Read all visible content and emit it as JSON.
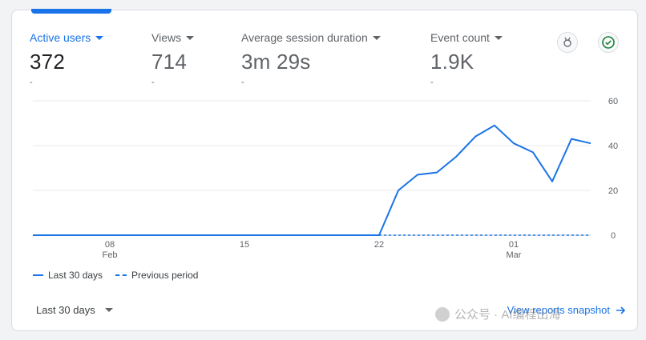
{
  "metrics": [
    {
      "label": "Active users",
      "value": "372",
      "delta": "-"
    },
    {
      "label": "Views",
      "value": "714",
      "delta": "-"
    },
    {
      "label": "Average session duration",
      "value": "3m 29s",
      "delta": "-"
    },
    {
      "label": "Event count",
      "value": "1.9K",
      "delta": "-"
    }
  ],
  "icons": {
    "insights": "medal-icon",
    "check": "check-circle-icon"
  },
  "colors": {
    "accent": "#1a73e8",
    "check": "#188038"
  },
  "legend": {
    "current": "Last 30 days",
    "previous": "Previous period"
  },
  "date_range": {
    "label": "Last 30 days"
  },
  "view_link": {
    "label": "View reports snapshot"
  },
  "watermark": {
    "text": "公众号 · AI编程出海"
  },
  "chart_data": {
    "type": "line",
    "title": "",
    "xlabel": "",
    "ylabel": "",
    "ylim": [
      0,
      60
    ],
    "yticks": [
      0,
      20,
      40,
      60
    ],
    "x_tick_labels": [
      {
        "day": 8,
        "label": "08",
        "sub": "Feb"
      },
      {
        "day": 15,
        "label": "15",
        "sub": ""
      },
      {
        "day": 22,
        "label": "22",
        "sub": ""
      },
      {
        "day": 29,
        "label": "01",
        "sub": "Mar"
      }
    ],
    "series": [
      {
        "name": "Last 30 days",
        "style": "solid",
        "days": [
          4,
          5,
          6,
          7,
          8,
          9,
          10,
          11,
          12,
          13,
          14,
          15,
          16,
          17,
          18,
          19,
          20,
          21,
          22,
          23,
          24,
          25,
          26,
          27,
          28,
          29,
          30,
          31,
          32,
          33
        ],
        "values": [
          0,
          0,
          0,
          0,
          0,
          0,
          0,
          0,
          0,
          0,
          0,
          0,
          0,
          0,
          0,
          0,
          0,
          0,
          0,
          20,
          27,
          28,
          35,
          44,
          49,
          41,
          37,
          24,
          43,
          41
        ]
      },
      {
        "name": "Previous period",
        "style": "dashed",
        "days": [
          22,
          33
        ],
        "values": [
          0,
          0
        ]
      }
    ]
  }
}
